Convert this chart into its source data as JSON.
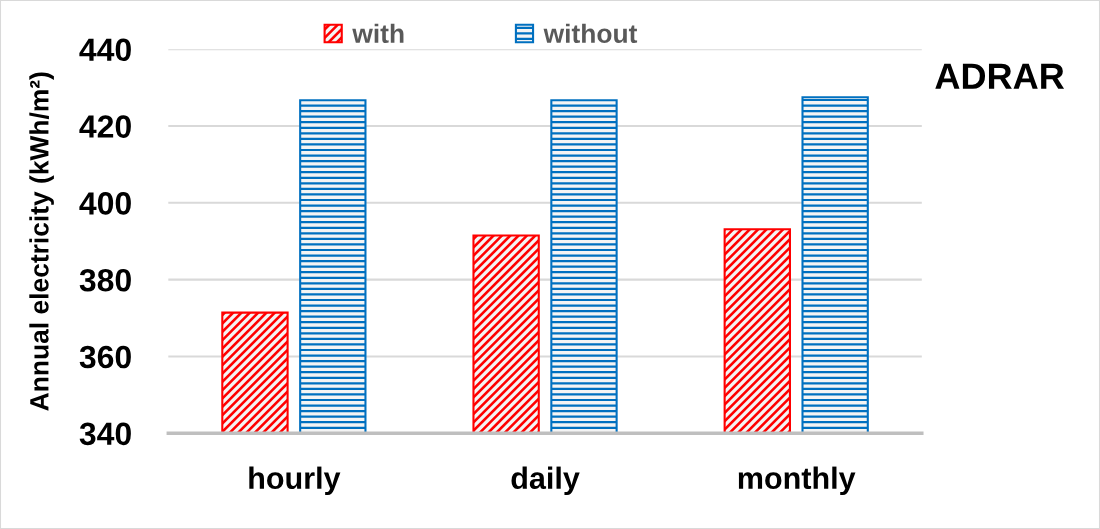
{
  "chart_data": {
    "type": "bar",
    "title": "ADRAR",
    "ylabel": "Annual electricity (kWh/m²)",
    "categories": [
      "hourly",
      "daily",
      "monthly"
    ],
    "series": [
      {
        "name": "with",
        "color": "#ff0000",
        "values": [
          371.4,
          391.5,
          393.1
        ]
      },
      {
        "name": "without",
        "color": "#0070c0",
        "values": [
          426.7,
          426.7,
          427.5
        ]
      }
    ],
    "ylim": [
      340,
      440
    ],
    "yticks": [
      340,
      360,
      380,
      400,
      420,
      440
    ],
    "grid": "y",
    "legend": "top"
  }
}
